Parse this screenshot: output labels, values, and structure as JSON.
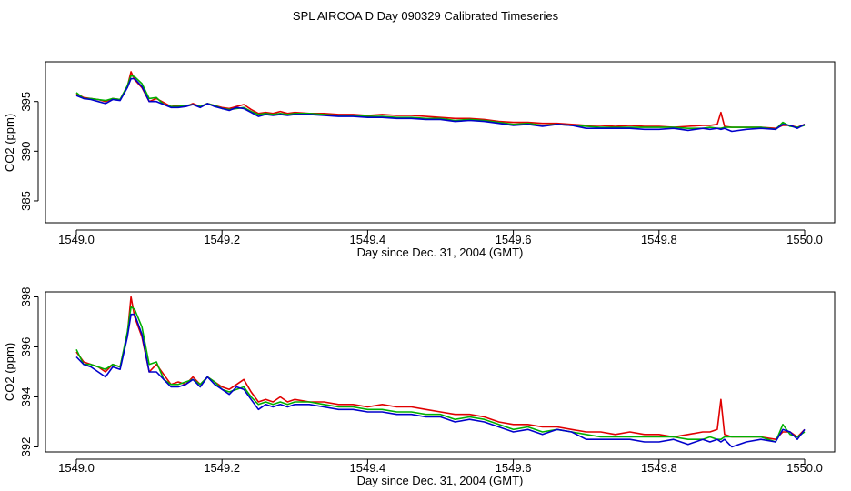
{
  "figure": {
    "title": "SPL AIRCOA D  Day 090329  Calibrated Timeseries"
  },
  "colors": {
    "series_red": "#e00000",
    "series_green": "#00b000",
    "series_blue": "#0000cc"
  },
  "chart_data": [
    {
      "type": "line",
      "title": "",
      "xlabel": "Day since Dec. 31, 2004 (GMT)",
      "ylabel": "CO2 (ppm)",
      "xlim": [
        1549.0,
        1550.0
      ],
      "ylim": [
        382.8,
        399.0
      ],
      "xticks": [
        1549.0,
        1549.2,
        1549.4,
        1549.6,
        1549.8,
        1550.0
      ],
      "xtick_labels": [
        "1549.0",
        "1549.2",
        "1549.4",
        "1549.6",
        "1549.8",
        "1550.0"
      ],
      "yticks": [
        385,
        390,
        395
      ],
      "ytick_labels": [
        "385",
        "390",
        "395"
      ],
      "grid": false,
      "legend": "none",
      "x": [
        1549.0,
        1549.01,
        1549.02,
        1549.03,
        1549.04,
        1549.05,
        1549.06,
        1549.07,
        1549.075,
        1549.08,
        1549.09,
        1549.1,
        1549.11,
        1549.12,
        1549.13,
        1549.14,
        1549.15,
        1549.16,
        1549.17,
        1549.18,
        1549.19,
        1549.2,
        1549.21,
        1549.22,
        1549.23,
        1549.24,
        1549.25,
        1549.26,
        1549.27,
        1549.28,
        1549.29,
        1549.3,
        1549.32,
        1549.34,
        1549.36,
        1549.38,
        1549.4,
        1549.42,
        1549.44,
        1549.46,
        1549.48,
        1549.5,
        1549.52,
        1549.54,
        1549.56,
        1549.58,
        1549.6,
        1549.62,
        1549.64,
        1549.66,
        1549.68,
        1549.7,
        1549.72,
        1549.74,
        1549.76,
        1549.78,
        1549.8,
        1549.82,
        1549.84,
        1549.86,
        1549.87,
        1549.88,
        1549.885,
        1549.89,
        1549.9,
        1549.92,
        1549.94,
        1549.96,
        1549.97,
        1549.98,
        1549.99,
        1550.0
      ],
      "series": [
        {
          "name": "red",
          "values": [
            395.8,
            395.4,
            395.3,
            395.2,
            395.0,
            395.3,
            395.2,
            396.5,
            398.0,
            397.2,
            396.4,
            395.0,
            395.3,
            394.9,
            394.5,
            394.6,
            394.5,
            394.8,
            394.5,
            394.8,
            394.6,
            394.4,
            394.3,
            394.5,
            394.7,
            394.2,
            393.8,
            393.9,
            393.8,
            394.0,
            393.8,
            393.9,
            393.8,
            393.8,
            393.7,
            393.7,
            393.6,
            393.7,
            393.6,
            393.6,
            393.5,
            393.4,
            393.3,
            393.3,
            393.2,
            393.0,
            392.9,
            392.9,
            392.8,
            392.8,
            392.7,
            392.6,
            392.6,
            392.5,
            392.6,
            392.5,
            392.5,
            392.4,
            392.5,
            392.6,
            392.6,
            392.7,
            393.9,
            392.5,
            392.4,
            392.4,
            392.4,
            392.3,
            392.6,
            392.6,
            392.4,
            392.7
          ]
        },
        {
          "name": "green",
          "values": [
            395.9,
            395.3,
            395.3,
            395.2,
            395.1,
            395.3,
            395.2,
            396.6,
            397.6,
            397.5,
            396.8,
            395.3,
            395.4,
            394.7,
            394.5,
            394.5,
            394.6,
            394.7,
            394.5,
            394.8,
            394.6,
            394.3,
            394.2,
            394.3,
            394.4,
            394.0,
            393.7,
            393.8,
            393.7,
            393.8,
            393.7,
            393.8,
            393.8,
            393.7,
            393.6,
            393.6,
            393.5,
            393.5,
            393.4,
            393.4,
            393.3,
            393.3,
            393.1,
            393.2,
            393.1,
            392.9,
            392.7,
            392.8,
            392.6,
            392.7,
            392.6,
            392.5,
            392.4,
            392.4,
            392.4,
            392.4,
            392.4,
            392.4,
            392.3,
            392.3,
            392.4,
            392.3,
            392.3,
            392.4,
            392.4,
            392.4,
            392.4,
            392.2,
            392.9,
            392.5,
            392.4,
            392.6
          ]
        },
        {
          "name": "blue",
          "values": [
            395.6,
            395.3,
            395.2,
            395.0,
            394.8,
            395.2,
            395.1,
            396.4,
            397.3,
            397.3,
            396.5,
            395.0,
            395.0,
            394.7,
            394.4,
            394.4,
            394.5,
            394.7,
            394.4,
            394.8,
            394.5,
            394.3,
            394.1,
            394.4,
            394.3,
            393.9,
            393.5,
            393.7,
            393.6,
            393.7,
            393.6,
            393.7,
            393.7,
            393.6,
            393.5,
            393.5,
            393.4,
            393.4,
            393.3,
            393.3,
            393.2,
            393.2,
            393.0,
            393.1,
            393.0,
            392.8,
            392.6,
            392.7,
            392.5,
            392.7,
            392.6,
            392.3,
            392.3,
            392.3,
            392.3,
            392.2,
            392.2,
            392.3,
            392.1,
            392.3,
            392.2,
            392.3,
            392.2,
            392.3,
            392.0,
            392.2,
            392.3,
            392.2,
            392.7,
            392.6,
            392.3,
            392.7
          ]
        }
      ]
    },
    {
      "type": "line",
      "title": "",
      "xlabel": "Day since Dec. 31, 2004 (GMT)",
      "ylabel": "CO2 (ppm)",
      "xlim": [
        1549.0,
        1550.0
      ],
      "ylim": [
        391.8,
        398.2
      ],
      "xticks": [
        1549.0,
        1549.2,
        1549.4,
        1549.6,
        1549.8,
        1550.0
      ],
      "xtick_labels": [
        "1549.0",
        "1549.2",
        "1549.4",
        "1549.6",
        "1549.8",
        "1550.0"
      ],
      "yticks": [
        392,
        394,
        396,
        398
      ],
      "ytick_labels": [
        "392",
        "394",
        "396",
        "398"
      ],
      "grid": false,
      "legend": "none",
      "x": [
        1549.0,
        1549.01,
        1549.02,
        1549.03,
        1549.04,
        1549.05,
        1549.06,
        1549.07,
        1549.075,
        1549.08,
        1549.09,
        1549.1,
        1549.11,
        1549.12,
        1549.13,
        1549.14,
        1549.15,
        1549.16,
        1549.17,
        1549.18,
        1549.19,
        1549.2,
        1549.21,
        1549.22,
        1549.23,
        1549.24,
        1549.25,
        1549.26,
        1549.27,
        1549.28,
        1549.29,
        1549.3,
        1549.32,
        1549.34,
        1549.36,
        1549.38,
        1549.4,
        1549.42,
        1549.44,
        1549.46,
        1549.48,
        1549.5,
        1549.52,
        1549.54,
        1549.56,
        1549.58,
        1549.6,
        1549.62,
        1549.64,
        1549.66,
        1549.68,
        1549.7,
        1549.72,
        1549.74,
        1549.76,
        1549.78,
        1549.8,
        1549.82,
        1549.84,
        1549.86,
        1549.87,
        1549.88,
        1549.885,
        1549.89,
        1549.9,
        1549.92,
        1549.94,
        1549.96,
        1549.97,
        1549.98,
        1549.99,
        1550.0
      ],
      "series": [
        {
          "name": "red",
          "values": [
            395.8,
            395.4,
            395.3,
            395.2,
            395.0,
            395.3,
            395.2,
            396.5,
            398.0,
            397.2,
            396.4,
            395.0,
            395.3,
            394.9,
            394.5,
            394.6,
            394.5,
            394.8,
            394.5,
            394.8,
            394.6,
            394.4,
            394.3,
            394.5,
            394.7,
            394.2,
            393.8,
            393.9,
            393.8,
            394.0,
            393.8,
            393.9,
            393.8,
            393.8,
            393.7,
            393.7,
            393.6,
            393.7,
            393.6,
            393.6,
            393.5,
            393.4,
            393.3,
            393.3,
            393.2,
            393.0,
            392.9,
            392.9,
            392.8,
            392.8,
            392.7,
            392.6,
            392.6,
            392.5,
            392.6,
            392.5,
            392.5,
            392.4,
            392.5,
            392.6,
            392.6,
            392.7,
            393.9,
            392.5,
            392.4,
            392.4,
            392.4,
            392.3,
            392.6,
            392.6,
            392.4,
            392.7
          ]
        },
        {
          "name": "green",
          "values": [
            395.9,
            395.3,
            395.3,
            395.2,
            395.1,
            395.3,
            395.2,
            396.6,
            397.6,
            397.5,
            396.8,
            395.3,
            395.4,
            394.7,
            394.5,
            394.5,
            394.6,
            394.7,
            394.5,
            394.8,
            394.6,
            394.3,
            394.2,
            394.3,
            394.4,
            394.0,
            393.7,
            393.8,
            393.7,
            393.8,
            393.7,
            393.8,
            393.8,
            393.7,
            393.6,
            393.6,
            393.5,
            393.5,
            393.4,
            393.4,
            393.3,
            393.3,
            393.1,
            393.2,
            393.1,
            392.9,
            392.7,
            392.8,
            392.6,
            392.7,
            392.6,
            392.5,
            392.4,
            392.4,
            392.4,
            392.4,
            392.4,
            392.4,
            392.3,
            392.3,
            392.4,
            392.3,
            392.3,
            392.4,
            392.4,
            392.4,
            392.4,
            392.2,
            392.9,
            392.5,
            392.4,
            392.6
          ]
        },
        {
          "name": "blue",
          "values": [
            395.6,
            395.3,
            395.2,
            395.0,
            394.8,
            395.2,
            395.1,
            396.4,
            397.3,
            397.3,
            396.5,
            395.0,
            395.0,
            394.7,
            394.4,
            394.4,
            394.5,
            394.7,
            394.4,
            394.8,
            394.5,
            394.3,
            394.1,
            394.4,
            394.3,
            393.9,
            393.5,
            393.7,
            393.6,
            393.7,
            393.6,
            393.7,
            393.7,
            393.6,
            393.5,
            393.5,
            393.4,
            393.4,
            393.3,
            393.3,
            393.2,
            393.2,
            393.0,
            393.1,
            393.0,
            392.8,
            392.6,
            392.7,
            392.5,
            392.7,
            392.6,
            392.3,
            392.3,
            392.3,
            392.3,
            392.2,
            392.2,
            392.3,
            392.1,
            392.3,
            392.2,
            392.3,
            392.2,
            392.3,
            392.0,
            392.2,
            392.3,
            392.2,
            392.7,
            392.6,
            392.3,
            392.7
          ]
        }
      ]
    }
  ]
}
